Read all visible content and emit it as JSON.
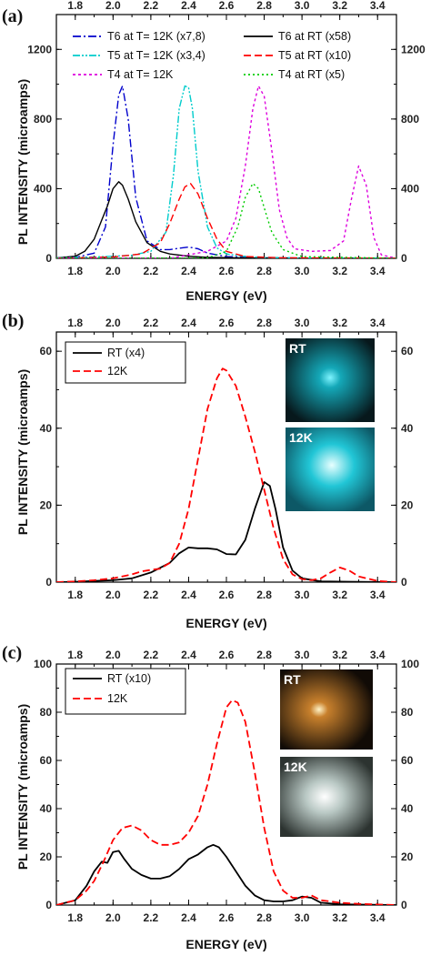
{
  "figure": {
    "ylabel": "PL INTENSITY (microamps)"
  },
  "chart_data": [
    {
      "type": "line",
      "panel_label": "(a)",
      "xlabel": "ENERGY (eV)",
      "xlim": [
        1.7,
        3.5
      ],
      "ylim": [
        0,
        1400
      ],
      "xticks": [
        "1.8",
        "2.0",
        "2.2",
        "2.4",
        "2.6",
        "2.8",
        "3.0",
        "3.2",
        "3.4"
      ],
      "yticks": [
        "0",
        "400",
        "800",
        "1200"
      ],
      "legend_placement": "top",
      "series": [
        {
          "name": "T6 at T= 12K (x7,8)",
          "color": "#0000cc",
          "dash": "9,3,2,3",
          "x": [
            1.7,
            1.8,
            1.9,
            1.96,
            2.0,
            2.03,
            2.05,
            2.08,
            2.12,
            2.18,
            2.25,
            2.3,
            2.35,
            2.4,
            2.45,
            2.5,
            2.6,
            2.8,
            3.0,
            3.5
          ],
          "y": [
            2,
            5,
            30,
            180,
            650,
            940,
            990,
            800,
            350,
            100,
            50,
            50,
            58,
            65,
            55,
            30,
            10,
            3,
            1,
            0
          ]
        },
        {
          "name": "T6 at RT (x58)",
          "color": "#000000",
          "dash": "",
          "x": [
            1.7,
            1.8,
            1.85,
            1.9,
            1.94,
            1.97,
            2.0,
            2.03,
            2.05,
            2.08,
            2.12,
            2.18,
            2.25,
            2.3,
            2.4,
            2.5,
            2.7,
            3.0,
            3.5
          ],
          "y": [
            2,
            12,
            40,
            110,
            220,
            300,
            400,
            440,
            420,
            340,
            210,
            90,
            40,
            25,
            12,
            5,
            2,
            1,
            0
          ]
        },
        {
          "name": "T5 at T= 12K (x3,4)",
          "color": "#00cccc",
          "dash": "8,2,2,2,2,2",
          "x": [
            1.7,
            1.9,
            2.0,
            2.1,
            2.2,
            2.28,
            2.32,
            2.35,
            2.38,
            2.4,
            2.42,
            2.45,
            2.5,
            2.55,
            2.6,
            2.7,
            2.8,
            3.0,
            3.5
          ],
          "y": [
            2,
            8,
            12,
            18,
            40,
            150,
            480,
            860,
            990,
            980,
            860,
            500,
            180,
            60,
            25,
            10,
            5,
            2,
            0
          ]
        },
        {
          "name": "T5 at RT (x10)",
          "color": "#ff0000",
          "dash": "8,4",
          "x": [
            1.7,
            2.0,
            2.15,
            2.25,
            2.3,
            2.35,
            2.38,
            2.41,
            2.45,
            2.5,
            2.55,
            2.6,
            2.7,
            2.9,
            3.5
          ],
          "y": [
            0,
            8,
            25,
            90,
            200,
            340,
            410,
            430,
            370,
            230,
            110,
            40,
            10,
            3,
            0
          ]
        },
        {
          "name": "T4 at T= 12K",
          "color": "#dd00dd",
          "dash": "3,3",
          "x": [
            1.7,
            2.3,
            2.5,
            2.6,
            2.65,
            2.7,
            2.74,
            2.77,
            2.8,
            2.84,
            2.88,
            2.92,
            2.96,
            3.05,
            3.15,
            3.22,
            3.26,
            3.3,
            3.34,
            3.38,
            3.42,
            3.5
          ],
          "y": [
            0,
            0,
            40,
            100,
            230,
            530,
            860,
            990,
            930,
            620,
            280,
            120,
            55,
            40,
            45,
            100,
            330,
            530,
            420,
            120,
            20,
            0
          ]
        },
        {
          "name": "T4 at RT (x5)",
          "color": "#00cc00",
          "dash": "2,3",
          "x": [
            1.7,
            2.5,
            2.6,
            2.66,
            2.7,
            2.74,
            2.77,
            2.8,
            2.84,
            2.9,
            3.0,
            3.5
          ],
          "y": [
            0,
            2,
            40,
            180,
            350,
            430,
            400,
            290,
            150,
            50,
            10,
            0
          ]
        }
      ]
    },
    {
      "type": "line",
      "panel_label": "(b)",
      "xlabel": "ENERGY (eV)",
      "xlim": [
        1.7,
        3.5
      ],
      "ylim": [
        0,
        65
      ],
      "xticks": [
        "1.8",
        "2.0",
        "2.2",
        "2.4",
        "2.6",
        "2.8",
        "3.0",
        "3.2",
        "3.4"
      ],
      "yticks": [
        "0",
        "20",
        "40",
        "60"
      ],
      "legend_placement": "top-left",
      "insets": [
        "RT",
        "12K"
      ],
      "series": [
        {
          "name": "RT (x4)",
          "color": "#000000",
          "dash": "",
          "x": [
            1.7,
            1.8,
            1.9,
            2.0,
            2.1,
            2.2,
            2.3,
            2.35,
            2.4,
            2.45,
            2.5,
            2.55,
            2.6,
            2.65,
            2.7,
            2.75,
            2.8,
            2.83,
            2.86,
            2.9,
            2.95,
            3.0,
            3.1,
            3.5
          ],
          "y": [
            0,
            0.1,
            0.3,
            0.5,
            1,
            2.5,
            5,
            7.5,
            9,
            8.8,
            8.8,
            8.5,
            7.3,
            7.2,
            11,
            19,
            26,
            25,
            19,
            9,
            3,
            1,
            0.2,
            0
          ]
        },
        {
          "name": "12K",
          "color": "#ff0000",
          "dash": "8,4",
          "x": [
            1.7,
            1.8,
            1.9,
            2.0,
            2.1,
            2.15,
            2.2,
            2.25,
            2.3,
            2.35,
            2.4,
            2.45,
            2.5,
            2.55,
            2.58,
            2.6,
            2.65,
            2.7,
            2.75,
            2.8,
            2.85,
            2.9,
            2.95,
            3.0,
            3.05,
            3.1,
            3.15,
            3.2,
            3.25,
            3.3,
            3.4,
            3.5
          ],
          "y": [
            0,
            0.2,
            0.5,
            1,
            2,
            2.8,
            3.2,
            3.5,
            5,
            10,
            19,
            32,
            45,
            53,
            55.5,
            55,
            51,
            43,
            34,
            24,
            14,
            6,
            2,
            0.8,
            0.5,
            1,
            2.5,
            3.8,
            3,
            1.5,
            0.3,
            0
          ]
        }
      ]
    },
    {
      "type": "line",
      "panel_label": "(c)",
      "xlabel": "ENERGY (eV)",
      "xlim": [
        1.7,
        3.5
      ],
      "ylim": [
        0,
        100
      ],
      "xticks": [
        "1.8",
        "2.0",
        "2.2",
        "2.4",
        "2.6",
        "2.8",
        "3.0",
        "3.2",
        "3.4"
      ],
      "yticks": [
        "0",
        "20",
        "40",
        "60",
        "80",
        "100"
      ],
      "legend_placement": "top-left",
      "insets": [
        "RT",
        "12K"
      ],
      "series": [
        {
          "name": "RT (x10)",
          "color": "#000000",
          "dash": "",
          "x": [
            1.7,
            1.8,
            1.86,
            1.9,
            1.94,
            1.97,
            2.0,
            2.03,
            2.06,
            2.1,
            2.15,
            2.2,
            2.25,
            2.3,
            2.35,
            2.4,
            2.45,
            2.5,
            2.53,
            2.56,
            2.6,
            2.65,
            2.7,
            2.75,
            2.8,
            2.85,
            2.9,
            2.95,
            3.0,
            3.05,
            3.1,
            3.2,
            3.5
          ],
          "y": [
            0,
            2,
            8,
            14,
            18,
            17.5,
            22,
            22.5,
            19,
            15,
            12.5,
            11,
            11,
            12,
            15,
            19,
            21,
            24,
            25,
            24,
            20,
            14,
            8,
            4,
            2,
            1.5,
            1.5,
            2,
            3.5,
            3,
            1,
            0.3,
            0
          ]
        },
        {
          "name": "12K",
          "color": "#ff0000",
          "dash": "8,4",
          "x": [
            1.7,
            1.8,
            1.86,
            1.9,
            1.95,
            2.0,
            2.05,
            2.1,
            2.15,
            2.2,
            2.25,
            2.3,
            2.35,
            2.4,
            2.45,
            2.5,
            2.55,
            2.6,
            2.63,
            2.66,
            2.7,
            2.75,
            2.8,
            2.85,
            2.9,
            2.95,
            3.0,
            3.05,
            3.1,
            3.2,
            3.3,
            3.5
          ],
          "y": [
            0,
            2,
            6,
            10,
            18,
            27,
            32,
            33,
            31,
            27,
            25,
            25,
            26,
            30,
            37,
            50,
            67,
            82,
            85,
            84,
            76,
            55,
            32,
            14,
            6,
            3,
            3,
            4,
            2,
            1,
            0.5,
            0
          ]
        }
      ]
    }
  ]
}
